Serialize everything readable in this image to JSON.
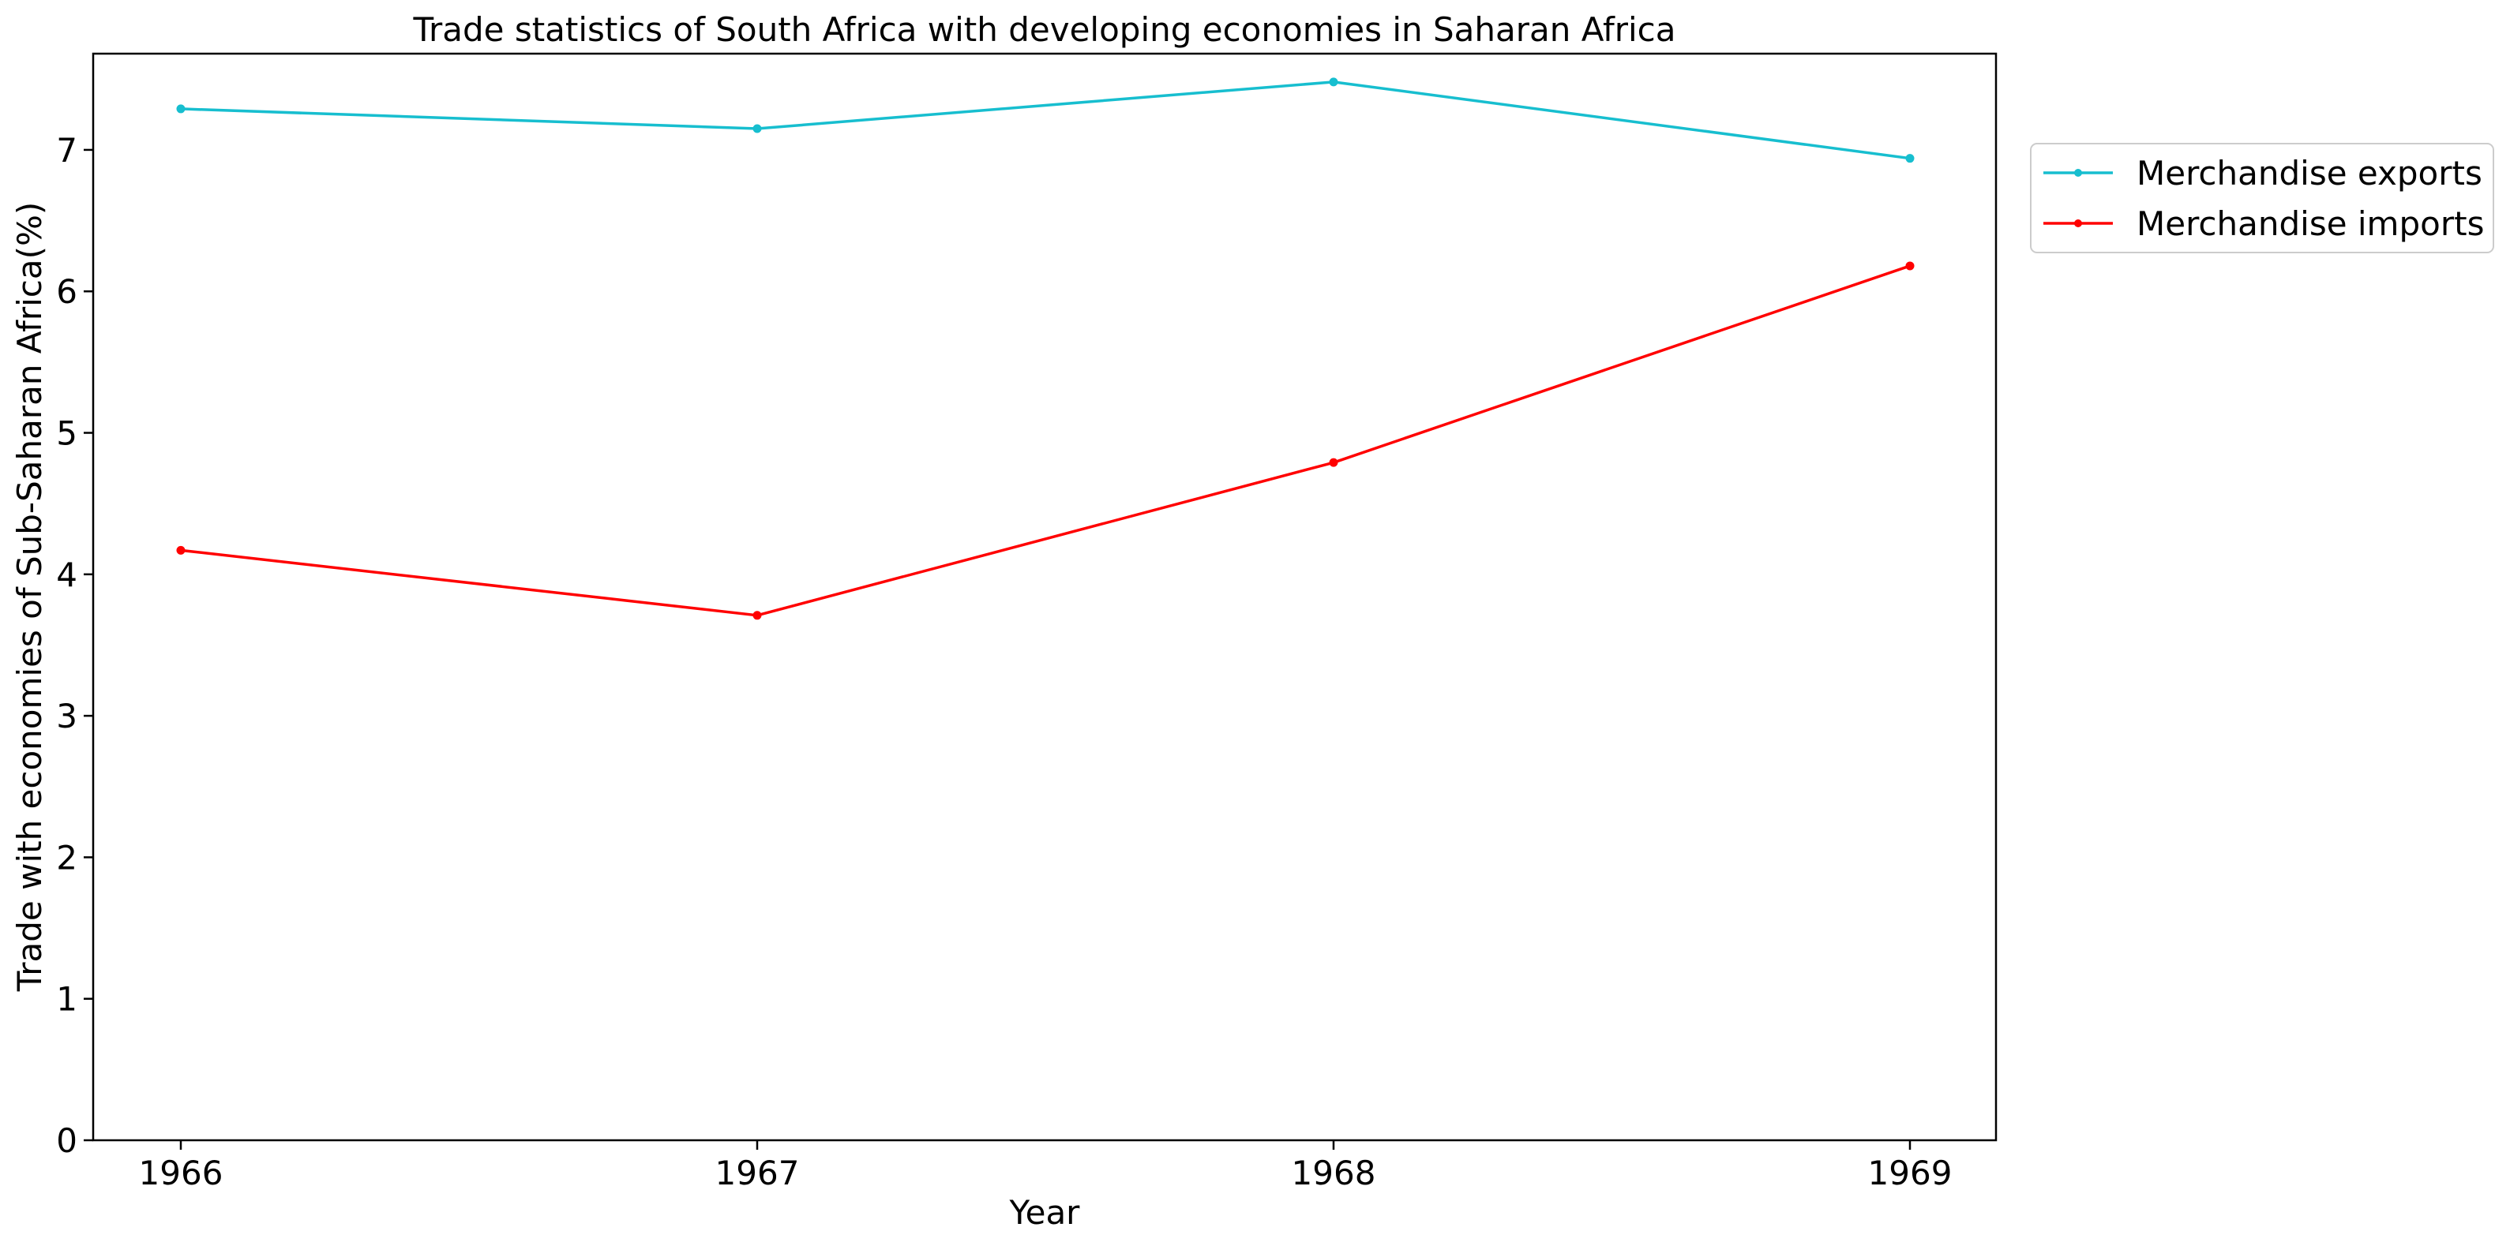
{
  "chart_data": {
    "type": "line",
    "title": "Trade statistics of South Africa with developing economies in Saharan Africa",
    "xlabel": "Year",
    "ylabel": "Trade with economies of Sub-Saharan Africa(%)",
    "categories": [
      "1966",
      "1967",
      "1968",
      "1969"
    ],
    "y_ticks": [
      "0",
      "1",
      "2",
      "3",
      "4",
      "5",
      "6",
      "7"
    ],
    "ylim": [
      0,
      7.68
    ],
    "grid": false,
    "legend_position": "outside-right-top",
    "series": [
      {
        "name": "Merchandise exports",
        "color": "#17becf",
        "values": [
          7.29,
          7.15,
          7.48,
          6.94
        ]
      },
      {
        "name": "Merchandise imports",
        "color": "#ff0000",
        "values": [
          4.17,
          3.71,
          4.79,
          6.18
        ]
      }
    ]
  }
}
